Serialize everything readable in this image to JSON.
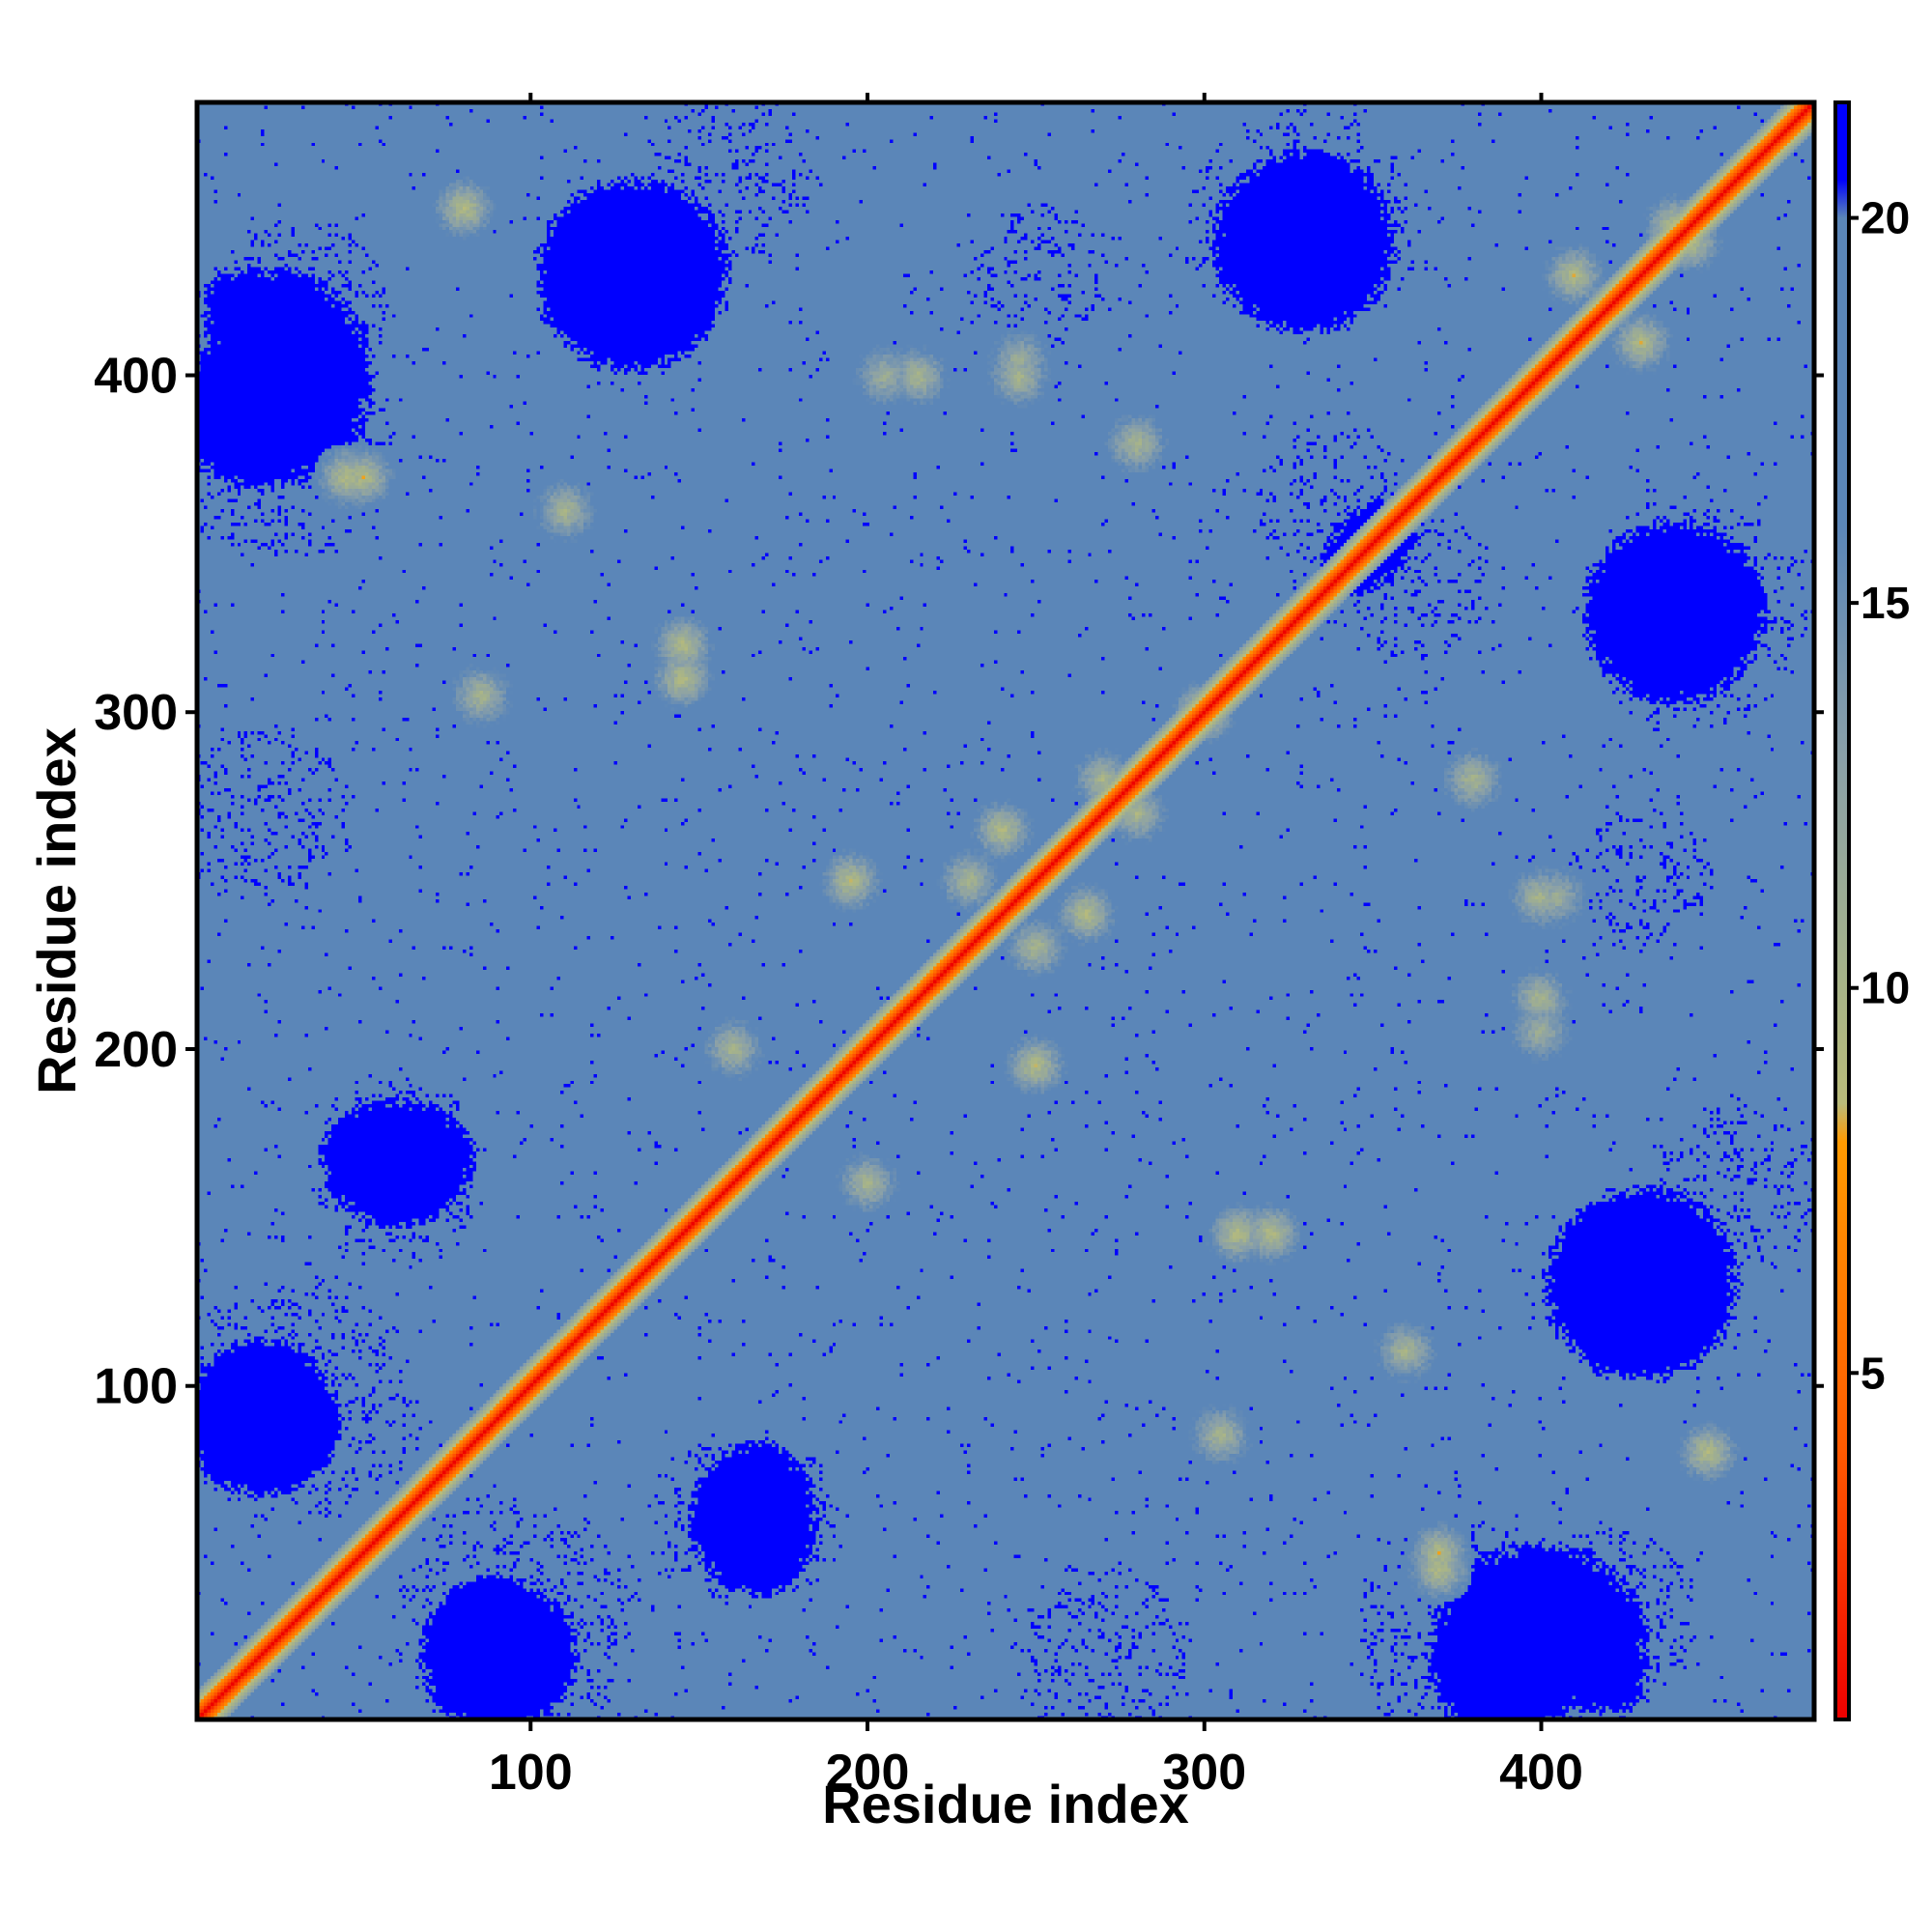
{
  "chart_data": {
    "type": "heatmap",
    "title": "",
    "xlabel": "Residue index",
    "ylabel": "Residue index",
    "xlim": [
      1,
      481
    ],
    "ylim": [
      1,
      481
    ],
    "x_ticks": [
      100,
      200,
      300,
      400
    ],
    "x_tick_labels": [
      "100",
      "200",
      "300",
      "400"
    ],
    "y_ticks": [
      100,
      200,
      300,
      400
    ],
    "y_tick_labels": [
      "100",
      "200",
      "300",
      "400"
    ],
    "grid": false,
    "symmetric": true,
    "colorbar": {
      "placement": "right",
      "range": [
        0.5,
        21.5
      ],
      "ticks": [
        5,
        10,
        15,
        20
      ],
      "tick_labels": [
        "5",
        "10",
        "15",
        "20"
      ],
      "colors": [
        {
          "value": 0.5,
          "color": "#ee0000"
        },
        {
          "value": 4.0,
          "color": "#ff5a00"
        },
        {
          "value": 8.0,
          "color": "#ff9a00"
        },
        {
          "value": 8.5,
          "color": "#b9bb7a"
        },
        {
          "value": 10.0,
          "color": "#a8b488"
        },
        {
          "value": 13.0,
          "color": "#8aa0a8"
        },
        {
          "value": 16.0,
          "color": "#5b86b8"
        },
        {
          "value": 20.0,
          "color": "#5b86b8"
        },
        {
          "value": 20.5,
          "color": "#0000ff"
        },
        {
          "value": 21.5,
          "color": "#0000ff"
        }
      ]
    },
    "diagonal_value": 0.5,
    "background_value": 21.0,
    "contact_clusters": [
      {
        "x": 80,
        "y": 450,
        "value": 9
      },
      {
        "x": 50,
        "y": 370,
        "value": 9
      },
      {
        "x": 110,
        "y": 360,
        "value": 10
      },
      {
        "x": 145,
        "y": 320,
        "value": 9
      },
      {
        "x": 85,
        "y": 305,
        "value": 10
      },
      {
        "x": 160,
        "y": 200,
        "value": 10
      },
      {
        "x": 195,
        "y": 250,
        "value": 9
      },
      {
        "x": 230,
        "y": 250,
        "value": 10
      },
      {
        "x": 265,
        "y": 240,
        "value": 9
      },
      {
        "x": 280,
        "y": 270,
        "value": 10
      },
      {
        "x": 300,
        "y": 300,
        "value": 8
      },
      {
        "x": 310,
        "y": 145,
        "value": 9
      },
      {
        "x": 370,
        "y": 45,
        "value": 9
      },
      {
        "x": 400,
        "y": 245,
        "value": 10
      },
      {
        "x": 400,
        "y": 215,
        "value": 10
      },
      {
        "x": 430,
        "y": 410,
        "value": 9
      },
      {
        "x": 445,
        "y": 440,
        "value": 9
      },
      {
        "x": 380,
        "y": 280,
        "value": 10
      },
      {
        "x": 205,
        "y": 400,
        "value": 11
      },
      {
        "x": 245,
        "y": 405,
        "value": 11
      }
    ],
    "empty_regions": [
      {
        "x": 20,
        "y": 400,
        "value": 21
      },
      {
        "x": 30,
        "y": 95,
        "value": 21
      },
      {
        "x": 90,
        "y": 20,
        "value": 21
      },
      {
        "x": 420,
        "y": 30,
        "value": 21
      },
      {
        "x": 380,
        "y": 25,
        "value": 21
      },
      {
        "x": 430,
        "y": 130,
        "value": 21
      },
      {
        "x": 330,
        "y": 445,
        "value": 21
      },
      {
        "x": 250,
        "y": 430,
        "value": 21
      },
      {
        "x": 360,
        "y": 340,
        "value": 21
      },
      {
        "x": 440,
        "y": 330,
        "value": 21
      },
      {
        "x": 160,
        "y": 460,
        "value": 21
      },
      {
        "x": 130,
        "y": 430,
        "value": 21
      },
      {
        "x": 60,
        "y": 170,
        "value": 21
      },
      {
        "x": 160,
        "y": 60,
        "value": 21
      },
      {
        "x": 20,
        "y": 270,
        "value": 21
      }
    ]
  }
}
